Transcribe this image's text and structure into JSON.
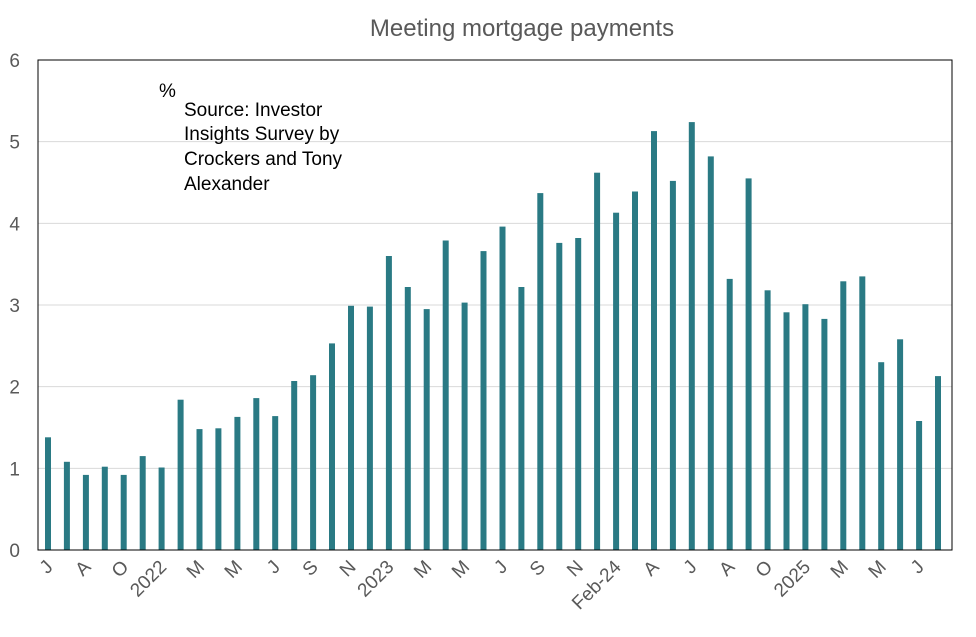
{
  "chart_data": {
    "type": "bar",
    "title": "Meeting mortgage payments",
    "ylabel": "%",
    "annotation": [
      "Source: Investor",
      "Insights Survey by",
      "Crockers and Tony",
      "Alexander"
    ],
    "ylim": [
      0,
      6
    ],
    "yticks": [
      0,
      1,
      2,
      3,
      4,
      5,
      6
    ],
    "grid": true,
    "bar_color": "#2a7a84",
    "categories": [
      "J",
      "",
      "A",
      "",
      "O",
      "",
      "2022",
      "",
      "M",
      "",
      "M",
      "",
      "J",
      "",
      "S",
      "",
      "N",
      "",
      "2023",
      "",
      "M",
      "",
      "M",
      "",
      "J",
      "",
      "S",
      "",
      "N",
      "",
      "Feb-24",
      "",
      "A",
      "",
      "J",
      "",
      "A",
      "",
      "O",
      "",
      "2025",
      "",
      "M",
      "",
      "M",
      "",
      "J",
      ""
    ],
    "values": [
      1.38,
      1.08,
      0.92,
      1.02,
      0.92,
      1.15,
      1.01,
      1.84,
      1.48,
      1.49,
      1.63,
      1.86,
      1.64,
      2.07,
      2.14,
      2.53,
      2.99,
      2.98,
      3.6,
      3.22,
      2.95,
      3.79,
      3.03,
      3.66,
      3.96,
      3.22,
      4.37,
      3.76,
      3.82,
      4.62,
      4.13,
      4.39,
      5.13,
      4.52,
      5.24,
      4.82,
      3.32,
      4.55,
      3.18,
      2.91,
      3.01,
      2.83,
      3.29,
      3.35,
      2.3,
      2.58,
      1.58,
      2.13
    ]
  }
}
